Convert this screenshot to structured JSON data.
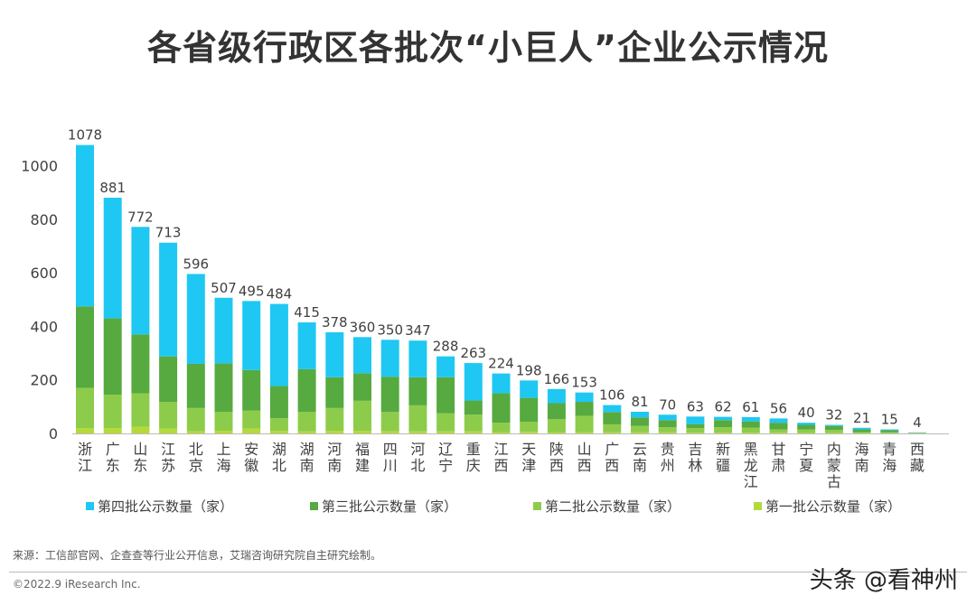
{
  "page": {
    "title": "各省级行政区各批次“小巨人”企业公示情况",
    "source": "来源：工信部官网、企查查等行业公开信息，艾瑞咨询研究院自主研究绘制。",
    "copyright": "©2022.9 iResearch Inc.",
    "watermark": "头条 @看神州"
  },
  "colors": {
    "batch4": "#1EC8F2",
    "batch3": "#56AA3F",
    "batch2": "#8DCC4A",
    "batch1": "#B4DA3A",
    "text": "#404040",
    "axis": "#bbbbbb"
  },
  "chart_data": {
    "type": "bar",
    "stacked": true,
    "title": "各省级行政区各批次“小巨人”企业公示情况",
    "ylim": [
      0,
      1080
    ],
    "yticks": [
      0,
      200,
      400,
      600,
      800,
      1000
    ],
    "legend_position": "bottom",
    "categories": [
      "浙江",
      "广东",
      "山东",
      "江苏",
      "北京",
      "上海",
      "安徽",
      "湖北",
      "湖南",
      "河南",
      "福建",
      "四川",
      "河北",
      "辽宁",
      "重庆",
      "江西",
      "天津",
      "陕西",
      "山西",
      "广西",
      "云南",
      "贵州",
      "吉林",
      "新疆",
      "黑龙江",
      "甘肃",
      "宁夏",
      "内蒙古",
      "海南",
      "青海",
      "西藏"
    ],
    "totals": [
      1078,
      881,
      772,
      713,
      596,
      507,
      495,
      484,
      415,
      378,
      360,
      350,
      347,
      288,
      263,
      224,
      198,
      166,
      153,
      106,
      81,
      70,
      63,
      62,
      61,
      56,
      40,
      32,
      21,
      15,
      4
    ],
    "series": [
      {
        "name": "第一批公示数量（家）",
        "values": [
          20,
          20,
          25,
          18,
          8,
          10,
          18,
          10,
          8,
          10,
          10,
          8,
          8,
          8,
          8,
          5,
          6,
          5,
          4,
          4,
          4,
          4,
          3,
          3,
          3,
          3,
          2,
          2,
          1,
          1,
          1
        ]
      },
      {
        "name": "第二批公示数量（家）",
        "values": [
          150,
          125,
          125,
          100,
          87,
          70,
          67,
          47,
          72,
          85,
          112,
          72,
          97,
          67,
          62,
          35,
          37,
          48,
          62,
          30,
          24,
          19,
          17,
          20,
          19,
          12,
          13,
          11,
          4,
          3,
          1
        ]
      },
      {
        "name": "第三批公示数量（家）",
        "values": [
          305,
          285,
          220,
          170,
          165,
          182,
          152,
          120,
          160,
          115,
          103,
          132,
          105,
          135,
          53,
          110,
          90,
          60,
          52,
          46,
          32,
          27,
          15,
          27,
          23,
          25,
          17,
          15,
          10,
          8,
          1
        ]
      },
      {
        "name": "第四批公示数量（家）",
        "values": [
          603,
          451,
          402,
          425,
          336,
          245,
          258,
          307,
          175,
          168,
          135,
          138,
          137,
          78,
          140,
          74,
          65,
          53,
          35,
          26,
          21,
          20,
          28,
          12,
          16,
          16,
          8,
          4,
          6,
          3,
          1
        ]
      }
    ]
  }
}
